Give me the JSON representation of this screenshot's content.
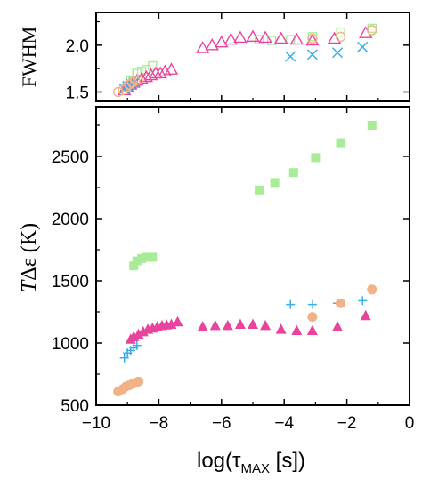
{
  "colors": {
    "green": "#a8ec98",
    "magenta": "#e8449e",
    "cyan": "#3aaee6",
    "orange": "#f2b286",
    "axis": "#000000"
  },
  "xaxis": {
    "prefix": "log(τ",
    "subscript": "MAX",
    "suffix": " [s])",
    "ticks": [
      "−10",
      "−8",
      "−6",
      "−4",
      "−2",
      "0"
    ]
  },
  "chart_data": [
    {
      "id": "top",
      "type": "scatter",
      "ylabel": "FWHM",
      "xlim": [
        -10,
        0
      ],
      "ylim": [
        1.4,
        2.35
      ],
      "yticks": [
        1.5,
        2.0
      ],
      "ytick_labels": [
        "1.5",
        "2.0"
      ],
      "xticks": [
        -10,
        -8,
        -6,
        -4,
        -2,
        0
      ],
      "series": [
        {
          "color": "green",
          "marker": "square-open",
          "points": [
            [
              -9.0,
              1.57
            ],
            [
              -8.9,
              1.62
            ],
            [
              -8.7,
              1.7
            ],
            [
              -8.55,
              1.72
            ],
            [
              -8.4,
              1.74
            ],
            [
              -8.2,
              1.78
            ],
            [
              -4.8,
              2.06
            ],
            [
              -4.4,
              2.05
            ],
            [
              -3.8,
              2.06
            ],
            [
              -3.1,
              2.09
            ],
            [
              -2.2,
              2.14
            ],
            [
              -1.2,
              2.18
            ]
          ]
        },
        {
          "color": "magenta",
          "marker": "triangle-open",
          "points": [
            [
              -9.1,
              1.52
            ],
            [
              -9.0,
              1.55
            ],
            [
              -8.9,
              1.58
            ],
            [
              -8.8,
              1.6
            ],
            [
              -8.7,
              1.62
            ],
            [
              -8.55,
              1.64
            ],
            [
              -8.4,
              1.66
            ],
            [
              -8.25,
              1.68
            ],
            [
              -8.1,
              1.7
            ],
            [
              -7.95,
              1.7
            ],
            [
              -7.8,
              1.72
            ],
            [
              -7.6,
              1.74
            ],
            [
              -6.6,
              1.97
            ],
            [
              -6.3,
              2.0
            ],
            [
              -6.0,
              2.03
            ],
            [
              -5.7,
              2.06
            ],
            [
              -5.4,
              2.08
            ],
            [
              -5.0,
              2.09
            ],
            [
              -4.6,
              2.08
            ],
            [
              -4.1,
              2.07
            ],
            [
              -3.6,
              2.06
            ],
            [
              -3.1,
              2.05
            ],
            [
              -2.4,
              2.07
            ],
            [
              -1.4,
              2.13
            ]
          ]
        },
        {
          "color": "cyan",
          "marker": "x",
          "points": [
            [
              -9.1,
              1.53
            ],
            [
              -9.0,
              1.56
            ],
            [
              -8.9,
              1.59
            ],
            [
              -8.8,
              1.6
            ],
            [
              -3.8,
              1.88
            ],
            [
              -3.1,
              1.9
            ],
            [
              -2.3,
              1.92
            ],
            [
              -1.5,
              1.98
            ]
          ]
        },
        {
          "color": "orange",
          "marker": "circle-open",
          "points": [
            [
              -9.3,
              1.5
            ],
            [
              -9.15,
              1.52
            ],
            [
              -9.05,
              1.55
            ],
            [
              -8.95,
              1.58
            ],
            [
              -8.85,
              1.6
            ],
            [
              -8.75,
              1.62
            ],
            [
              -8.65,
              1.63
            ],
            [
              -3.1,
              2.07
            ],
            [
              -2.2,
              2.09
            ],
            [
              -1.2,
              2.16
            ]
          ]
        }
      ]
    },
    {
      "id": "bottom",
      "type": "scatter",
      "ylabel_italic": "T",
      "ylabel_rest": "Δε (K)",
      "xlim": [
        -10,
        0
      ],
      "ylim": [
        500,
        2900
      ],
      "yticks": [
        500,
        1000,
        1500,
        2000,
        2500
      ],
      "ytick_labels": [
        "500",
        "1000",
        "1500",
        "2000",
        "2500"
      ],
      "xticks": [
        -10,
        -8,
        -6,
        -4,
        -2,
        0
      ],
      "series": [
        {
          "color": "green",
          "marker": "square-filled",
          "points": [
            [
              -8.8,
              1620
            ],
            [
              -8.7,
              1660
            ],
            [
              -8.55,
              1680
            ],
            [
              -8.4,
              1690
            ],
            [
              -8.2,
              1690
            ],
            [
              -4.8,
              2230
            ],
            [
              -4.3,
              2290
            ],
            [
              -3.7,
              2370
            ],
            [
              -3.0,
              2490
            ],
            [
              -2.2,
              2610
            ],
            [
              -1.2,
              2750
            ]
          ]
        },
        {
          "color": "magenta",
          "marker": "triangle-filled",
          "points": [
            [
              -8.9,
              1030
            ],
            [
              -8.8,
              1050
            ],
            [
              -8.65,
              1070
            ],
            [
              -8.5,
              1090
            ],
            [
              -8.35,
              1110
            ],
            [
              -8.2,
              1120
            ],
            [
              -8.05,
              1130
            ],
            [
              -7.9,
              1140
            ],
            [
              -7.75,
              1145
            ],
            [
              -7.6,
              1150
            ],
            [
              -7.4,
              1170
            ],
            [
              -6.6,
              1130
            ],
            [
              -6.2,
              1140
            ],
            [
              -5.8,
              1140
            ],
            [
              -5.4,
              1150
            ],
            [
              -5.0,
              1150
            ],
            [
              -4.6,
              1140
            ],
            [
              -4.1,
              1110
            ],
            [
              -3.6,
              1100
            ],
            [
              -3.1,
              1100
            ],
            [
              -2.3,
              1130
            ],
            [
              -1.4,
              1220
            ]
          ]
        },
        {
          "color": "cyan",
          "marker": "plus",
          "points": [
            [
              -9.1,
              880
            ],
            [
              -9.0,
              920
            ],
            [
              -8.9,
              940
            ],
            [
              -8.8,
              960
            ],
            [
              -8.7,
              980
            ],
            [
              -3.8,
              1310
            ],
            [
              -3.1,
              1310
            ],
            [
              -2.3,
              1320
            ],
            [
              -1.5,
              1340
            ]
          ]
        },
        {
          "color": "orange",
          "marker": "circle-filled",
          "points": [
            [
              -9.3,
              610
            ],
            [
              -9.15,
              630
            ],
            [
              -9.05,
              650
            ],
            [
              -8.95,
              660
            ],
            [
              -8.85,
              670
            ],
            [
              -8.75,
              680
            ],
            [
              -8.65,
              690
            ],
            [
              -3.1,
              1210
            ],
            [
              -2.2,
              1320
            ],
            [
              -1.2,
              1430
            ]
          ]
        }
      ]
    }
  ]
}
